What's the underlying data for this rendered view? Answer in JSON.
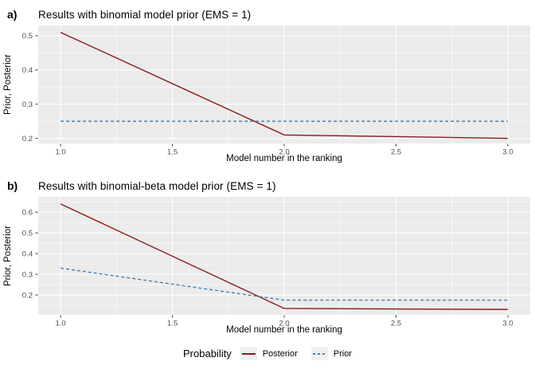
{
  "colors": {
    "posterior": "#8B1A1A",
    "prior": "#4682B4",
    "panel_bg": "#EBEBEB",
    "grid": "#FFFFFF",
    "tick_mark": "#333333",
    "tick_text": "#4D4D4D",
    "legend_key_bg": "#F0F0F0"
  },
  "legend": {
    "title": "Probability",
    "position": "bottom",
    "entries": [
      {
        "label": "Posterior",
        "style": "solid",
        "color": "#8B1A1A"
      },
      {
        "label": "Prior",
        "style": "dashed",
        "color": "#4682B4"
      }
    ]
  },
  "chart_data": [
    {
      "type": "line",
      "tag": "a)",
      "title": "Results with binomial model prior (EMS = 1)",
      "xlabel": "Model number in the ranking",
      "ylabel": "Prior, Posterior",
      "x": [
        1,
        2,
        3
      ],
      "series": [
        {
          "name": "Posterior",
          "color": "#8B1A1A",
          "dash": "solid",
          "values": [
            0.51,
            0.21,
            0.2
          ]
        },
        {
          "name": "Prior",
          "color": "#4682B4",
          "dash": "dashed",
          "values": [
            0.25,
            0.25,
            0.25
          ]
        }
      ],
      "x_domain": [
        0.9,
        3.1
      ],
      "y_domain": [
        0.185,
        0.53
      ],
      "x_ticks": [
        {
          "v": 1.0,
          "label": "1.0"
        },
        {
          "v": 1.5,
          "label": "1.5"
        },
        {
          "v": 2.0,
          "label": "2.0"
        },
        {
          "v": 2.5,
          "label": "2.5"
        },
        {
          "v": 3.0,
          "label": "3.0"
        }
      ],
      "x_minor": [
        1.25,
        1.75,
        2.25,
        2.75
      ],
      "y_ticks": [
        {
          "v": 0.2,
          "label": "0.2"
        },
        {
          "v": 0.3,
          "label": "0.3"
        },
        {
          "v": 0.4,
          "label": "0.4"
        },
        {
          "v": 0.5,
          "label": "0.5"
        }
      ],
      "y_minor": [
        0.25,
        0.35,
        0.45
      ],
      "grid": true
    },
    {
      "type": "line",
      "tag": "b)",
      "title": "Results with binomial-beta model prior (EMS = 1)",
      "xlabel": "Model number in the ranking",
      "ylabel": "Prior, Posterior",
      "x": [
        1,
        2,
        3
      ],
      "series": [
        {
          "name": "Posterior",
          "color": "#8B1A1A",
          "dash": "solid",
          "values": [
            0.64,
            0.135,
            0.13
          ]
        },
        {
          "name": "Prior",
          "color": "#4682B4",
          "dash": "dashed",
          "values": [
            0.33,
            0.175,
            0.175
          ]
        }
      ],
      "x_domain": [
        0.9,
        3.1
      ],
      "y_domain": [
        0.104,
        0.674
      ],
      "x_ticks": [
        {
          "v": 1.0,
          "label": "1.0"
        },
        {
          "v": 1.5,
          "label": "1.5"
        },
        {
          "v": 2.0,
          "label": "2.0"
        },
        {
          "v": 2.5,
          "label": "2.5"
        },
        {
          "v": 3.0,
          "label": "3.0"
        }
      ],
      "x_minor": [
        1.25,
        1.75,
        2.25,
        2.75
      ],
      "y_ticks": [
        {
          "v": 0.2,
          "label": "0.2"
        },
        {
          "v": 0.3,
          "label": "0.3"
        },
        {
          "v": 0.4,
          "label": "0.4"
        },
        {
          "v": 0.5,
          "label": "0.5"
        },
        {
          "v": 0.6,
          "label": "0.6"
        }
      ],
      "y_minor": [
        0.15,
        0.25,
        0.35,
        0.45,
        0.55,
        0.65
      ],
      "grid": true
    }
  ]
}
